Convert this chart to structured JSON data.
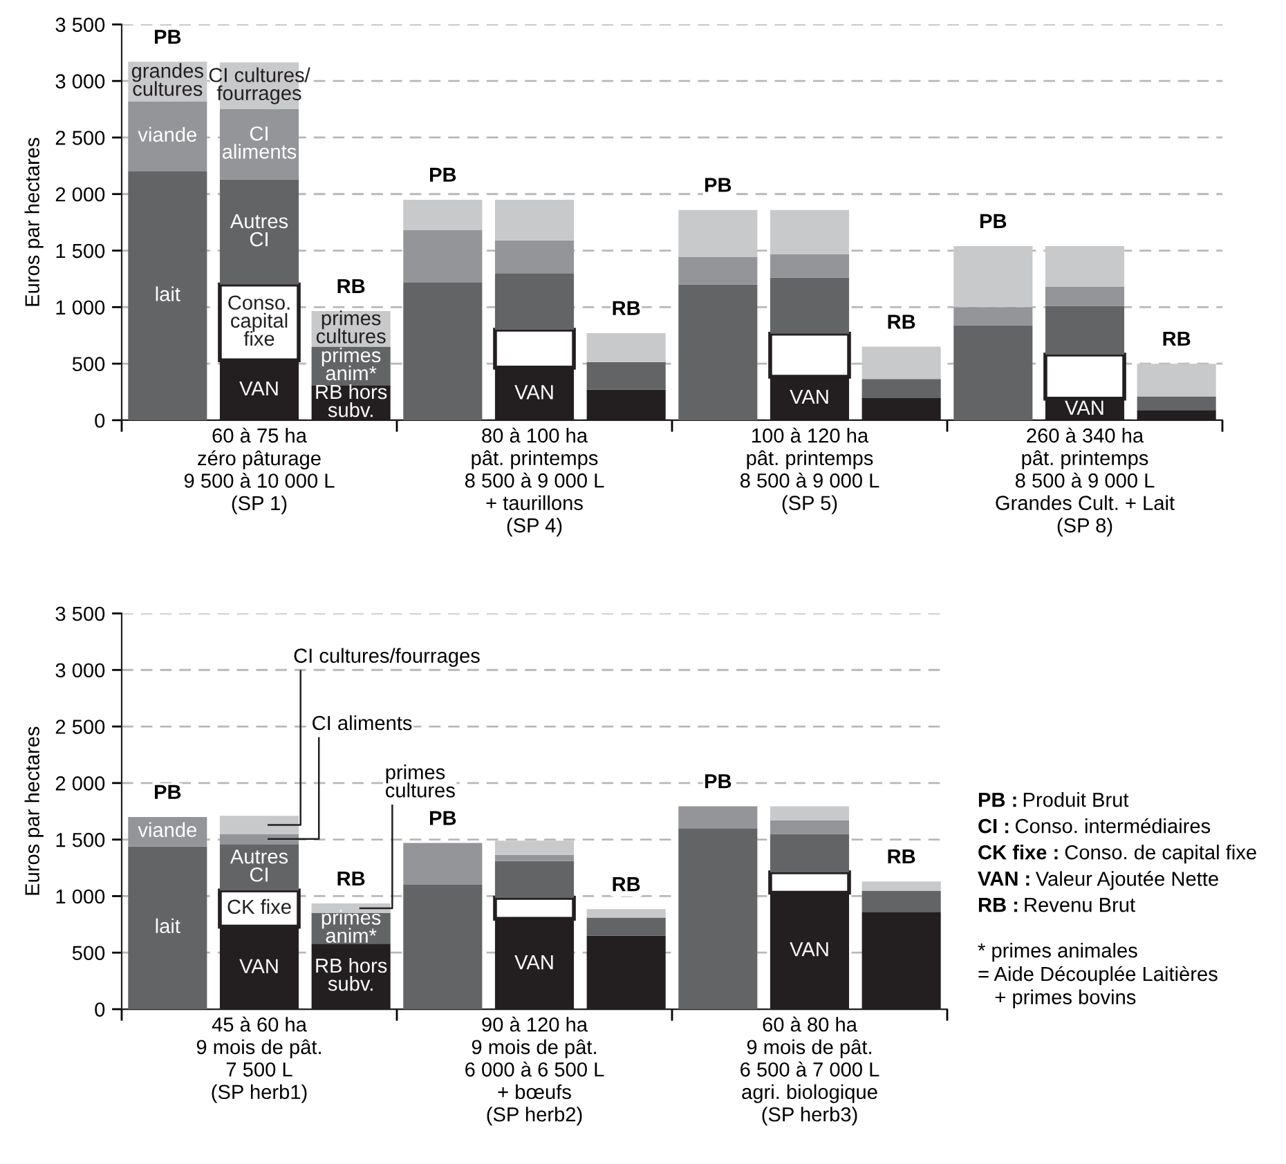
{
  "chart_data": [
    {
      "type": "bar",
      "stacked": true,
      "ylabel": "Euros par hectares",
      "ylim": [
        0,
        3500
      ],
      "yticks": [
        0,
        500,
        {
          "value": 1000,
          "label": "1 000"
        },
        {
          "value": 1500,
          "label": "1 500"
        },
        {
          "value": 2000,
          "label": "2 000"
        },
        {
          "value": 2500,
          "label": "2 500"
        },
        {
          "value": 3000,
          "label": "3 000"
        },
        {
          "value": 3500,
          "label": "3 500"
        }
      ],
      "grid": "y",
      "categories": [
        null,
        "60 à 75 ha\nzéro pâturage\n9 500 à 10 000 L\n(SP 1)",
        null,
        null,
        "80 à 100 ha\npât. printemps\n8 500 à 9 000 L\n+ taurillons\n(SP 4)",
        null,
        null,
        "100 à 120 ha\npât. printemps\n8 500 à 9 000 L\n(SP 5)",
        null,
        null,
        "260 à 340 ha\npât. printemps\n8 500 à 9 000 L\nGrandes Cult. + Lait\n(SP 8)",
        null
      ],
      "totals": [
        "PB",
        null,
        "RB",
        "PB",
        null,
        "RB",
        "PB",
        null,
        "RB",
        "PB",
        null,
        "RB"
      ],
      "series": [
        {
          "color": "#636466",
          "values": [
            2200,
            null,
            null,
            1220,
            null,
            null,
            1200,
            null,
            null,
            840,
            null,
            null
          ],
          "value_labels": [
            "lait",
            null,
            null,
            null,
            null,
            null,
            null,
            null,
            null,
            null,
            null,
            null
          ]
        },
        {
          "color": "#939598",
          "values": [
            620,
            null,
            null,
            460,
            null,
            null,
            245,
            null,
            null,
            160,
            null,
            null
          ],
          "value_labels": [
            "viande",
            null,
            null,
            null,
            null,
            null,
            null,
            null,
            null,
            null,
            null,
            null
          ]
        },
        {
          "color": "#c8c9cb",
          "values": [
            350,
            null,
            null,
            270,
            null,
            null,
            415,
            null,
            null,
            540,
            null,
            null
          ],
          "value_labels": [
            "grandes\ncultures",
            null,
            null,
            null,
            null,
            null,
            null,
            null,
            null,
            null,
            null,
            null
          ]
        },
        {
          "color": "#231f20",
          "values": [
            null,
            530,
            null,
            null,
            465,
            null,
            null,
            385,
            null,
            null,
            190,
            null
          ],
          "value_labels": [
            null,
            "VAN",
            null,
            null,
            "VAN",
            null,
            null,
            "VAN",
            null,
            null,
            "VAN",
            null
          ]
        },
        {
          "color": "#ffffff",
          "values": [
            null,
            670,
            null,
            null,
            335,
            null,
            null,
            380,
            null,
            null,
            390,
            null
          ],
          "value_labels": [
            null,
            "Conso.\ncapital\nfixe",
            null,
            null,
            null,
            null,
            null,
            null,
            null,
            null,
            null,
            null
          ]
        },
        {
          "color": "#636466",
          "values": [
            null,
            930,
            null,
            null,
            500,
            null,
            null,
            495,
            null,
            null,
            430,
            null
          ],
          "value_labels": [
            null,
            "Autres\nCI",
            null,
            null,
            null,
            null,
            null,
            null,
            null,
            null,
            null,
            null
          ]
        },
        {
          "color": "#939598",
          "values": [
            null,
            620,
            null,
            null,
            290,
            null,
            null,
            210,
            null,
            null,
            170,
            null
          ],
          "value_labels": [
            null,
            "CI\naliments",
            null,
            null,
            null,
            null,
            null,
            null,
            null,
            null,
            null,
            null
          ]
        },
        {
          "color": "#c8c9cb",
          "values": [
            null,
            415,
            null,
            null,
            360,
            null,
            null,
            390,
            null,
            null,
            360,
            null
          ],
          "value_labels": [
            null,
            "CI cultures/\nfourrages",
            null,
            null,
            null,
            null,
            null,
            null,
            null,
            null,
            null,
            null
          ]
        },
        {
          "color": "#231f20",
          "values": [
            null,
            null,
            310,
            null,
            null,
            270,
            null,
            null,
            195,
            null,
            null,
            90
          ],
          "value_labels": [
            null,
            null,
            "RB hors\nsubv.",
            null,
            null,
            null,
            null,
            null,
            null,
            null,
            null,
            null
          ]
        },
        {
          "color": "#636466",
          "values": [
            null,
            null,
            340,
            null,
            null,
            245,
            null,
            null,
            170,
            null,
            null,
            120
          ],
          "value_labels": [
            null,
            null,
            "primes\nanim*",
            null,
            null,
            null,
            null,
            null,
            null,
            null,
            null,
            null
          ]
        },
        {
          "color": "#c8c9cb",
          "values": [
            null,
            null,
            315,
            null,
            null,
            255,
            null,
            null,
            285,
            null,
            null,
            290
          ],
          "value_labels": [
            null,
            null,
            "primes\ncultures",
            null,
            null,
            null,
            null,
            null,
            null,
            null,
            null,
            null
          ]
        }
      ]
    },
    {
      "type": "bar",
      "stacked": true,
      "ylabel": "Euros par hectares",
      "ylim": [
        0,
        3500
      ],
      "yticks": [
        0,
        500,
        {
          "value": 1000,
          "label": "1 000"
        },
        {
          "value": 1500,
          "label": "1 500"
        },
        {
          "value": 2000,
          "label": "2 000"
        },
        {
          "value": 2500,
          "label": "2 500"
        },
        {
          "value": 3000,
          "label": "3 000"
        },
        {
          "value": 3500,
          "label": "3 500"
        }
      ],
      "grid": "y",
      "categories": [
        null,
        "45 à 60 ha\n9 mois de pât.\n7 500 L\n(SP herb1)",
        null,
        null,
        "90 à 120 ha\n9 mois de pât.\n6 000 à 6 500 L\n+ bœufs\n(SP herb2)",
        null,
        null,
        "60 à 80 ha\n9 mois de pât.\n6 500 à 7 000 L\nagri. biologique\n(SP herb3)",
        null
      ],
      "totals": [
        "PB",
        null,
        "RB",
        "PB",
        null,
        "RB",
        "PB",
        null,
        "RB"
      ],
      "series": [
        {
          "color": "#636466",
          "values": [
            1440,
            null,
            null,
            1100,
            null,
            null,
            1600,
            null,
            null
          ],
          "value_labels": [
            "lait",
            null,
            null,
            null,
            null,
            null,
            null,
            null,
            null
          ]
        },
        {
          "color": "#939598",
          "values": [
            260,
            null,
            null,
            370,
            null,
            null,
            195,
            null,
            null
          ],
          "value_labels": [
            "viande",
            null,
            null,
            null,
            null,
            null,
            null,
            null,
            null
          ]
        },
        {
          "color": "#231f20",
          "values": [
            null,
            730,
            null,
            null,
            800,
            null,
            null,
            1030,
            null
          ],
          "value_labels": [
            null,
            "VAN",
            null,
            null,
            "VAN",
            null,
            null,
            "VAN",
            null
          ]
        },
        {
          "color": "#ffffff",
          "values": [
            null,
            320,
            null,
            null,
            185,
            null,
            null,
            180,
            null
          ],
          "value_labels": [
            null,
            "CK fixe",
            null,
            null,
            null,
            null,
            null,
            null,
            null
          ]
        },
        {
          "color": "#636466",
          "values": [
            null,
            410,
            null,
            null,
            325,
            null,
            null,
            340,
            null
          ],
          "value_labels": [
            null,
            "Autres\nCI",
            null,
            null,
            null,
            null,
            null,
            null,
            null
          ]
        },
        {
          "color": "#939598",
          "values": [
            null,
            90,
            null,
            null,
            55,
            null,
            null,
            120,
            null
          ],
          "value_labels": [
            null,
            "CI aliments",
            null,
            null,
            null,
            null,
            null,
            null,
            null
          ]
        },
        {
          "color": "#c8c9cb",
          "values": [
            null,
            160,
            null,
            null,
            125,
            null,
            null,
            125,
            null
          ],
          "value_labels": [
            null,
            "CI cultures/fourrages",
            null,
            null,
            null,
            null,
            null,
            null,
            null
          ]
        },
        {
          "color": "#231f20",
          "values": [
            null,
            null,
            580,
            null,
            null,
            650,
            null,
            null,
            860
          ],
          "value_labels": [
            null,
            null,
            "RB hors\nsubv.",
            null,
            null,
            null,
            null,
            null,
            null
          ]
        },
        {
          "color": "#636466",
          "values": [
            null,
            null,
            270,
            null,
            null,
            160,
            null,
            null,
            185
          ],
          "value_labels": [
            null,
            null,
            "primes\nanim*",
            null,
            null,
            null,
            null,
            null,
            null
          ]
        },
        {
          "color": "#c8c9cb",
          "values": [
            null,
            null,
            85,
            null,
            null,
            75,
            null,
            null,
            85
          ],
          "value_labels": [
            null,
            null,
            "primes\ncultures",
            null,
            null,
            null,
            null,
            null,
            null
          ]
        }
      ],
      "annotations": [
        "PB : Produit Brut",
        "CI : Conso. intermédiaires",
        "CK fixe : Conso. de capital fixe",
        "VAN : Valeur Ajoutée Nette",
        "RB : Revenu Brut",
        "* primes animales\n= Aide Découplée Laitières\n   + primes bovins"
      ]
    }
  ]
}
